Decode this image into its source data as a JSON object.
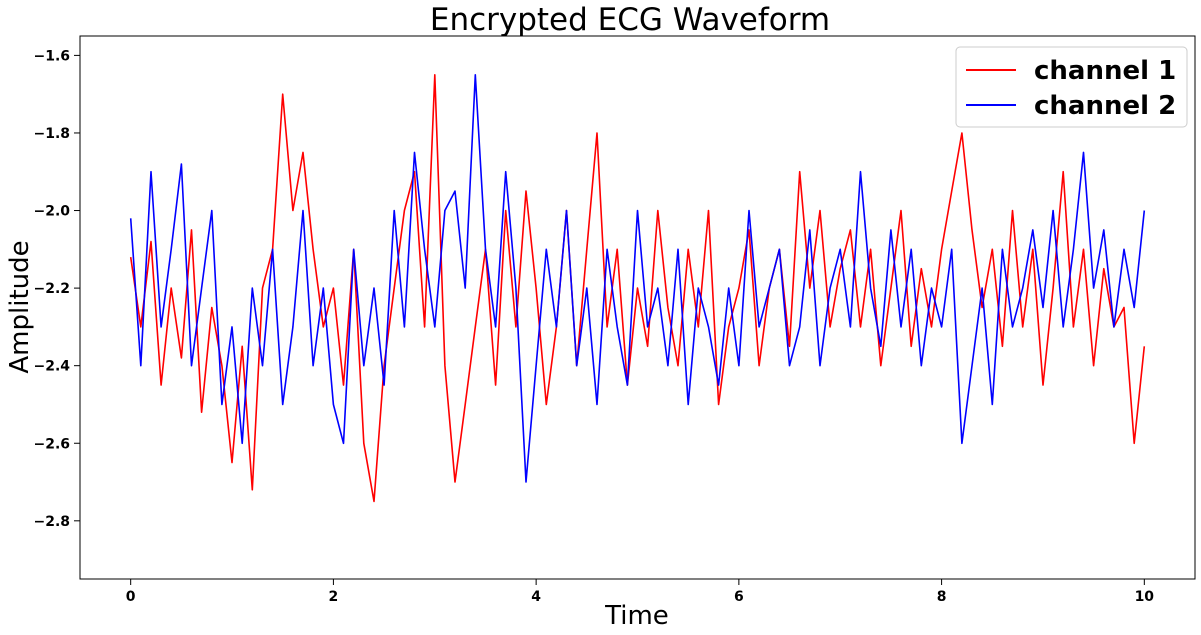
{
  "chart_data": {
    "type": "line",
    "title": "Encrypted ECG Waveform",
    "xlabel": "Time",
    "ylabel": "Amplitude",
    "xlim": [
      -0.5,
      10.5
    ],
    "ylim": [
      -2.95,
      -1.55
    ],
    "xticks": [
      0,
      2,
      4,
      6,
      8,
      10
    ],
    "xtick_labels": [
      "0",
      "2",
      "4",
      "6",
      "8",
      "10"
    ],
    "yticks": [
      -2.8,
      -2.6,
      -2.4,
      -2.2,
      -2.0,
      -1.8,
      -1.6
    ],
    "ytick_labels": [
      "−2.8",
      "−2.6",
      "−2.4",
      "−2.2",
      "−2.0",
      "−1.8",
      "−1.6"
    ],
    "grid": false,
    "legend_position": "top-right",
    "series": [
      {
        "name": "channel 1",
        "color": "#ff0000",
        "x": [
          0,
          0.1,
          0.2,
          0.3,
          0.4,
          0.5,
          0.6,
          0.7,
          0.8,
          0.9,
          1.0,
          1.1,
          1.2,
          1.3,
          1.4,
          1.5,
          1.6,
          1.7,
          1.8,
          1.9,
          2.0,
          2.1,
          2.2,
          2.3,
          2.4,
          2.5,
          2.6,
          2.7,
          2.8,
          2.9,
          3.0,
          3.1,
          3.2,
          3.3,
          3.4,
          3.5,
          3.6,
          3.7,
          3.8,
          3.9,
          4.0,
          4.1,
          4.2,
          4.3,
          4.4,
          4.5,
          4.6,
          4.7,
          4.8,
          4.9,
          5.0,
          5.1,
          5.2,
          5.3,
          5.4,
          5.5,
          5.6,
          5.7,
          5.8,
          5.9,
          6.0,
          6.1,
          6.2,
          6.3,
          6.4,
          6.5,
          6.6,
          6.7,
          6.8,
          6.9,
          7.0,
          7.1,
          7.2,
          7.3,
          7.4,
          7.5,
          7.6,
          7.7,
          7.8,
          7.9,
          8.0,
          8.1,
          8.2,
          8.3,
          8.4,
          8.5,
          8.6,
          8.7,
          8.8,
          8.9,
          9.0,
          9.1,
          9.2,
          9.3,
          9.4,
          9.5,
          9.6,
          9.7,
          9.8,
          9.9,
          10.0
        ],
        "values": [
          -2.12,
          -2.3,
          -2.08,
          -2.45,
          -2.2,
          -2.38,
          -2.05,
          -2.52,
          -2.25,
          -2.4,
          -2.65,
          -2.35,
          -2.72,
          -2.2,
          -2.1,
          -1.7,
          -2.0,
          -1.85,
          -2.1,
          -2.3,
          -2.2,
          -2.45,
          -2.1,
          -2.6,
          -2.75,
          -2.4,
          -2.2,
          -2.0,
          -1.9,
          -2.3,
          -1.65,
          -2.4,
          -2.7,
          -2.5,
          -2.3,
          -2.1,
          -2.45,
          -2.0,
          -2.3,
          -1.95,
          -2.2,
          -2.5,
          -2.3,
          -2.0,
          -2.4,
          -2.1,
          -1.8,
          -2.3,
          -2.1,
          -2.45,
          -2.2,
          -2.35,
          -2.0,
          -2.25,
          -2.4,
          -2.1,
          -2.3,
          -2.0,
          -2.5,
          -2.3,
          -2.2,
          -2.05,
          -2.4,
          -2.2,
          -2.1,
          -2.35,
          -1.9,
          -2.2,
          -2.0,
          -2.3,
          -2.15,
          -2.05,
          -2.3,
          -2.1,
          -2.4,
          -2.2,
          -2.0,
          -2.35,
          -2.15,
          -2.3,
          -2.1,
          -1.95,
          -1.8,
          -2.05,
          -2.25,
          -2.1,
          -2.35,
          -2.0,
          -2.3,
          -2.1,
          -2.45,
          -2.2,
          -1.9,
          -2.3,
          -2.1,
          -2.4,
          -2.15,
          -2.3,
          -2.25,
          -2.6,
          -2.35
        ]
      },
      {
        "name": "channel 2",
        "color": "#0000ff",
        "x": [
          0,
          0.1,
          0.2,
          0.3,
          0.4,
          0.5,
          0.6,
          0.7,
          0.8,
          0.9,
          1.0,
          1.1,
          1.2,
          1.3,
          1.4,
          1.5,
          1.6,
          1.7,
          1.8,
          1.9,
          2.0,
          2.1,
          2.2,
          2.3,
          2.4,
          2.5,
          2.6,
          2.7,
          2.8,
          2.9,
          3.0,
          3.1,
          3.2,
          3.3,
          3.4,
          3.5,
          3.6,
          3.7,
          3.8,
          3.9,
          4.0,
          4.1,
          4.2,
          4.3,
          4.4,
          4.5,
          4.6,
          4.7,
          4.8,
          4.9,
          5.0,
          5.1,
          5.2,
          5.3,
          5.4,
          5.5,
          5.6,
          5.7,
          5.8,
          5.9,
          6.0,
          6.1,
          6.2,
          6.3,
          6.4,
          6.5,
          6.6,
          6.7,
          6.8,
          6.9,
          7.0,
          7.1,
          7.2,
          7.3,
          7.4,
          7.5,
          7.6,
          7.7,
          7.8,
          7.9,
          8.0,
          8.1,
          8.2,
          8.3,
          8.4,
          8.5,
          8.6,
          8.7,
          8.8,
          8.9,
          9.0,
          9.1,
          9.2,
          9.3,
          9.4,
          9.5,
          9.6,
          9.7,
          9.8,
          9.9,
          10.0
        ],
        "values": [
          -2.02,
          -2.4,
          -1.9,
          -2.3,
          -2.1,
          -1.88,
          -2.4,
          -2.2,
          -2.0,
          -2.5,
          -2.3,
          -2.6,
          -2.2,
          -2.4,
          -2.1,
          -2.5,
          -2.3,
          -2.0,
          -2.4,
          -2.2,
          -2.5,
          -2.6,
          -2.1,
          -2.4,
          -2.2,
          -2.45,
          -2.0,
          -2.3,
          -1.85,
          -2.1,
          -2.3,
          -2.0,
          -1.95,
          -2.2,
          -1.65,
          -2.1,
          -2.3,
          -1.9,
          -2.2,
          -2.7,
          -2.4,
          -2.1,
          -2.3,
          -2.0,
          -2.4,
          -2.2,
          -2.5,
          -2.1,
          -2.3,
          -2.45,
          -2.0,
          -2.3,
          -2.2,
          -2.4,
          -2.1,
          -2.5,
          -2.2,
          -2.3,
          -2.45,
          -2.2,
          -2.4,
          -2.0,
          -2.3,
          -2.2,
          -2.1,
          -2.4,
          -2.3,
          -2.05,
          -2.4,
          -2.2,
          -2.1,
          -2.3,
          -1.9,
          -2.2,
          -2.35,
          -2.05,
          -2.3,
          -2.1,
          -2.4,
          -2.2,
          -2.3,
          -2.1,
          -2.6,
          -2.4,
          -2.2,
          -2.5,
          -2.1,
          -2.3,
          -2.2,
          -2.05,
          -2.25,
          -2.0,
          -2.3,
          -2.1,
          -1.85,
          -2.2,
          -2.05,
          -2.3,
          -2.1,
          -2.25,
          -2.0
        ]
      }
    ]
  }
}
